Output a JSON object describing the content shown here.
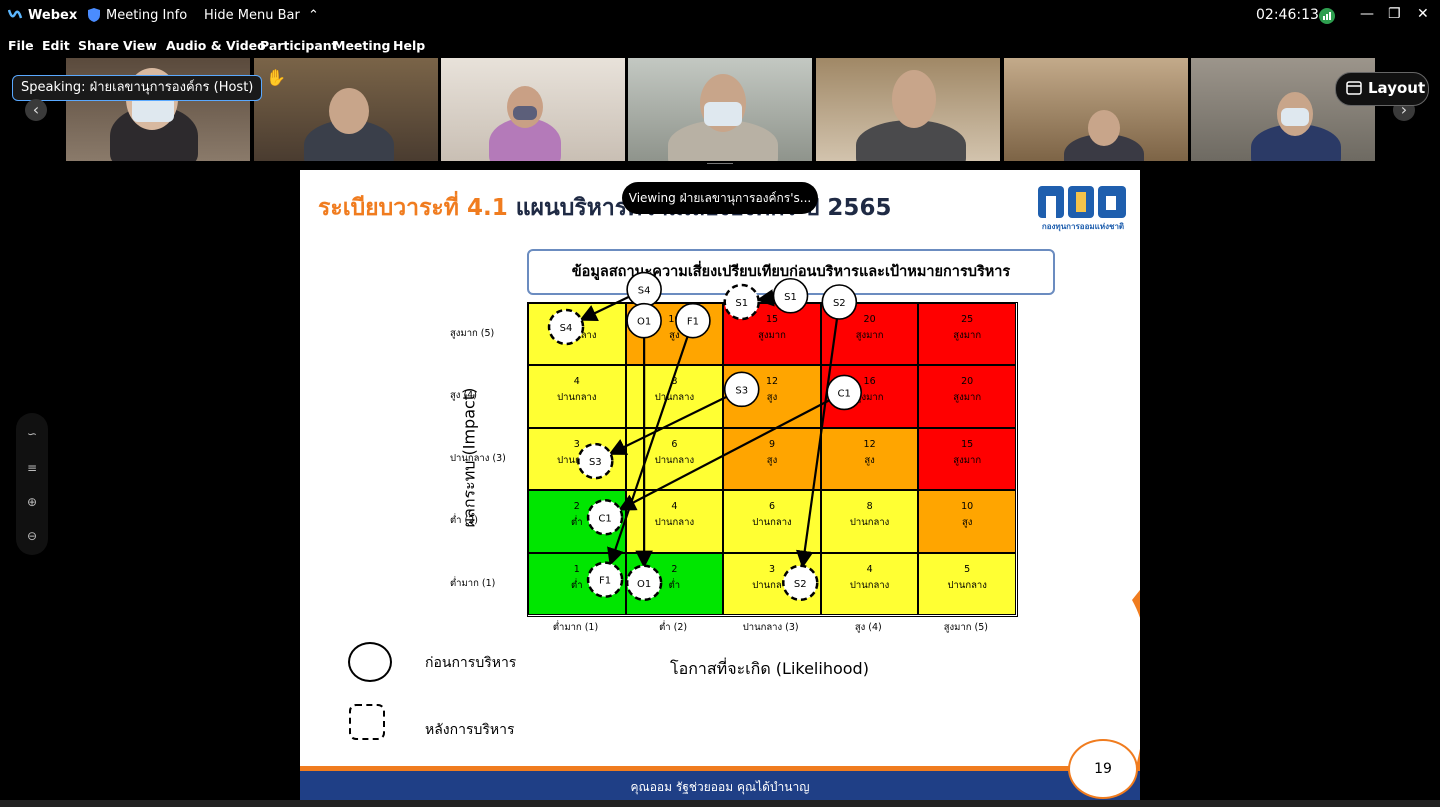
{
  "titlebar": {
    "app_name": "Webex",
    "meeting_info": "Meeting Info",
    "hide_menu": "Hide Menu Bar",
    "clock": "02:46:13"
  },
  "menu": [
    "File",
    "Edit",
    "Share",
    "View",
    "Audio & Video",
    "Participant",
    "Meeting",
    "Help"
  ],
  "strip": {
    "speaking": "Speaking: ฝ่ายเลขานุการองค์กร (Host)",
    "layout_label": "Layout"
  },
  "viewing": "Viewing ฝ่ายเลขานุการองค์กร's...",
  "slide": {
    "title_orange": "ระเบียบวาระที่ 4.1",
    "title_dark": "แผนบริหารความเสี่ยงองค์กร ปี 2565",
    "logo_text": "กองทุนการออมแห่งชาติ",
    "subtitle": "ข้อมูลสถานะความเสี่ยงเปรียบเทียบก่อนบริหารและเป้าหมายการบริหาร",
    "y_axis_title": "ผลกระทบ (Impact)",
    "x_axis_title": "โอกาสที่จะเกิด (Likelihood)",
    "y_labels": [
      "สูงมาก (5)",
      "สูง (4)",
      "ปานกลาง (3)",
      "ต่ำ (2)",
      "ต่ำมาก (1)"
    ],
    "x_labels": [
      "ต่ำมาก (1)",
      "ต่ำ (2)",
      "ปานกลาง (3)",
      "สูง (4)",
      "สูงมาก (5)"
    ],
    "cells": [
      [
        {
          "v": "5",
          "t": "ปานกลาง",
          "c": "#ffff33"
        },
        {
          "v": "10",
          "t": "สูง",
          "c": "#ffa500"
        },
        {
          "v": "15",
          "t": "สูงมาก",
          "c": "#ff0000"
        },
        {
          "v": "20",
          "t": "สูงมาก",
          "c": "#ff0000"
        },
        {
          "v": "25",
          "t": "สูงมาก",
          "c": "#ff0000"
        }
      ],
      [
        {
          "v": "4",
          "t": "ปานกลาง",
          "c": "#ffff33"
        },
        {
          "v": "8",
          "t": "ปานกลาง",
          "c": "#ffff33"
        },
        {
          "v": "12",
          "t": "สูง",
          "c": "#ffa500"
        },
        {
          "v": "16",
          "t": "สูงมาก",
          "c": "#ff0000"
        },
        {
          "v": "20",
          "t": "สูงมาก",
          "c": "#ff0000"
        }
      ],
      [
        {
          "v": "3",
          "t": "ปานกลาง",
          "c": "#ffff33"
        },
        {
          "v": "6",
          "t": "ปานกลาง",
          "c": "#ffff33"
        },
        {
          "v": "9",
          "t": "สูง",
          "c": "#ffa500"
        },
        {
          "v": "12",
          "t": "สูง",
          "c": "#ffa500"
        },
        {
          "v": "15",
          "t": "สูงมาก",
          "c": "#ff0000"
        }
      ],
      [
        {
          "v": "2",
          "t": "ต่ำ",
          "c": "#00e600"
        },
        {
          "v": "4",
          "t": "ปานกลาง",
          "c": "#ffff33"
        },
        {
          "v": "6",
          "t": "ปานกลาง",
          "c": "#ffff33"
        },
        {
          "v": "8",
          "t": "ปานกลาง",
          "c": "#ffff33"
        },
        {
          "v": "10",
          "t": "สูง",
          "c": "#ffa500"
        }
      ],
      [
        {
          "v": "1",
          "t": "ต่ำ",
          "c": "#00e600"
        },
        {
          "v": "2",
          "t": "ต่ำ",
          "c": "#00e600"
        },
        {
          "v": "3",
          "t": "ปานกลาง",
          "c": "#ffff33"
        },
        {
          "v": "4",
          "t": "ปานกลาง",
          "c": "#ffff33"
        },
        {
          "v": "5",
          "t": "ปานกลาง",
          "c": "#ffff33"
        }
      ]
    ],
    "risks": [
      {
        "id": "S4",
        "before": [
          1.2,
          5.2
        ],
        "after": [
          0.4,
          4.6
        ]
      },
      {
        "id": "O1",
        "before": [
          1.2,
          4.7
        ],
        "after": [
          1.2,
          0.5
        ]
      },
      {
        "id": "F1",
        "before": [
          1.7,
          4.7
        ],
        "after": [
          0.8,
          0.55
        ]
      },
      {
        "id": "S1",
        "before": [
          2.7,
          5.1
        ],
        "after": [
          2.2,
          5.0
        ]
      },
      {
        "id": "S2",
        "before": [
          3.2,
          5.0
        ],
        "after": [
          2.8,
          0.5
        ]
      },
      {
        "id": "S3",
        "before": [
          2.2,
          3.6
        ],
        "after": [
          0.7,
          2.45
        ]
      },
      {
        "id": "C1",
        "before": [
          3.25,
          3.55
        ],
        "after": [
          0.8,
          1.55
        ]
      }
    ],
    "legend_before": "ก่อนการบริหาร",
    "legend_after": "หลังการบริหาร",
    "page_number": "19",
    "footer": "คุณออม รัฐช่วยออม คุณได้บำนาญ"
  },
  "colors": {
    "orange": "#f07c1f",
    "navy": "#1f3f86"
  }
}
